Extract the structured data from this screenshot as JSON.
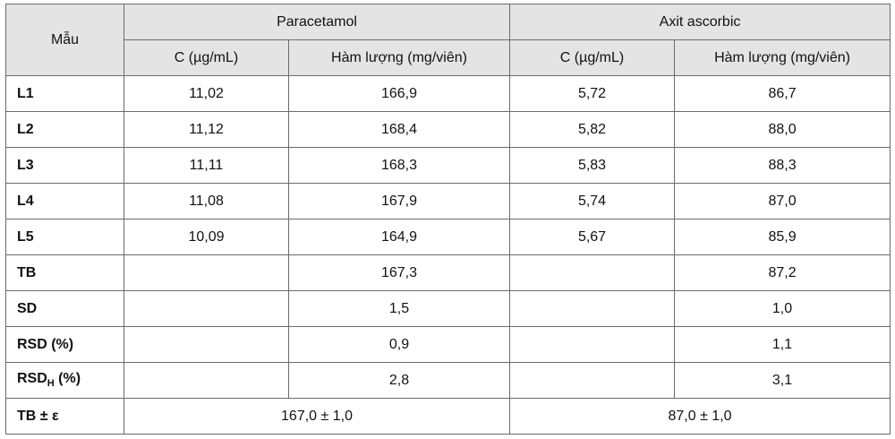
{
  "header": {
    "sample": "Mẫu",
    "group1": "Paracetamol",
    "group2": "Axit ascorbic",
    "sub": [
      "C (µg/mL)",
      "Hàm lượng  (mg/viên)",
      "C (µg/mL)",
      "Hàm lượng (mg/viên)"
    ]
  },
  "rows": [
    {
      "label": "L1",
      "p_c": "11,02",
      "p_h": "166,9",
      "a_c": "5,72",
      "a_h": "86,7"
    },
    {
      "label": "L2",
      "p_c": "11,12",
      "p_h": "168,4",
      "a_c": "5,82",
      "a_h": "88,0"
    },
    {
      "label": "L3",
      "p_c": "11,11",
      "p_h": "168,3",
      "a_c": "5,83",
      "a_h": "88,3"
    },
    {
      "label": "L4",
      "p_c": "11,08",
      "p_h": "167,9",
      "a_c": "5,74",
      "a_h": "87,0"
    },
    {
      "label": "L5",
      "p_c": "10,09",
      "p_h": "164,9",
      "a_c": "5,67",
      "a_h": "85,9"
    },
    {
      "label": "TB",
      "p_c": "",
      "p_h": "167,3",
      "a_c": "",
      "a_h": "87,2"
    },
    {
      "label": "SD",
      "p_c": "",
      "p_h": "1,5",
      "a_c": "",
      "a_h": "1,0"
    },
    {
      "label": "RSD (%)",
      "p_c": "",
      "p_h": "0,9",
      "a_c": "",
      "a_h": "1,1"
    }
  ],
  "rsdh": {
    "label_main": "RSD",
    "label_sub": "H",
    "label_tail": " (%)",
    "p_h": "2,8",
    "a_h": "3,1"
  },
  "final": {
    "label": "TB ± ε",
    "p": "167,0 ± 1,0",
    "a": "87,0 ± 1,0"
  }
}
